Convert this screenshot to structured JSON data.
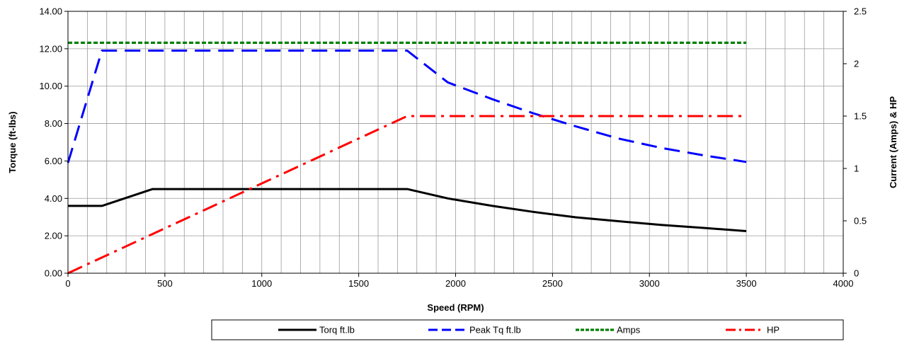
{
  "chart_data": {
    "type": "line",
    "xlabel": "Speed (RPM)",
    "ylabel": "Torque (ft-lbs)",
    "y2label": "Current (Amps) & HP",
    "xlim": [
      0,
      4000
    ],
    "ylim": [
      0,
      14
    ],
    "y2lim": [
      0,
      2.5
    ],
    "x_ticks": [
      "0",
      "500",
      "1000",
      "1500",
      "2000",
      "2500",
      "3000",
      "3500",
      "4000"
    ],
    "y_ticks": [
      "0.00",
      "2.00",
      "4.00",
      "6.00",
      "8.00",
      "10.00",
      "12.00",
      "14.00"
    ],
    "y2_ticks": [
      "0",
      "0.5",
      "1",
      "1.5",
      "2",
      "2.5"
    ],
    "x_grid_step": 100,
    "y_grid_step": 2,
    "grid": true,
    "legend_position": "bottom",
    "series": [
      {
        "name": "Torq ft.lb",
        "axis": "left",
        "color": "#000000",
        "dash": "solid",
        "x": [
          0,
          175,
          437,
          1750,
          1960,
          2190,
          2400,
          2620,
          2840,
          3060,
          3280,
          3500
        ],
        "y": [
          3.6,
          3.6,
          4.5,
          4.5,
          4.0,
          3.6,
          3.28,
          2.99,
          2.78,
          2.58,
          2.42,
          2.25
        ]
      },
      {
        "name": "Peak Tq ft.lb",
        "axis": "left",
        "color": "#0000ff",
        "dash": "longdash",
        "x": [
          0,
          175,
          1750,
          1960,
          2190,
          2400,
          2620,
          2840,
          3060,
          3280,
          3500
        ],
        "y": [
          5.9,
          11.9,
          11.9,
          10.2,
          9.3,
          8.55,
          7.85,
          7.2,
          6.7,
          6.3,
          5.95
        ]
      },
      {
        "name": "Amps",
        "axis": "right",
        "color": "#008000",
        "dash": "dotted",
        "x": [
          0,
          3500
        ],
        "y": [
          2.2,
          2.2
        ]
      },
      {
        "name": "HP",
        "axis": "right",
        "color": "#ff0000",
        "dash": "dashdot",
        "x": [
          0,
          1750,
          3500
        ],
        "y": [
          0,
          1.5,
          1.5
        ]
      }
    ]
  }
}
